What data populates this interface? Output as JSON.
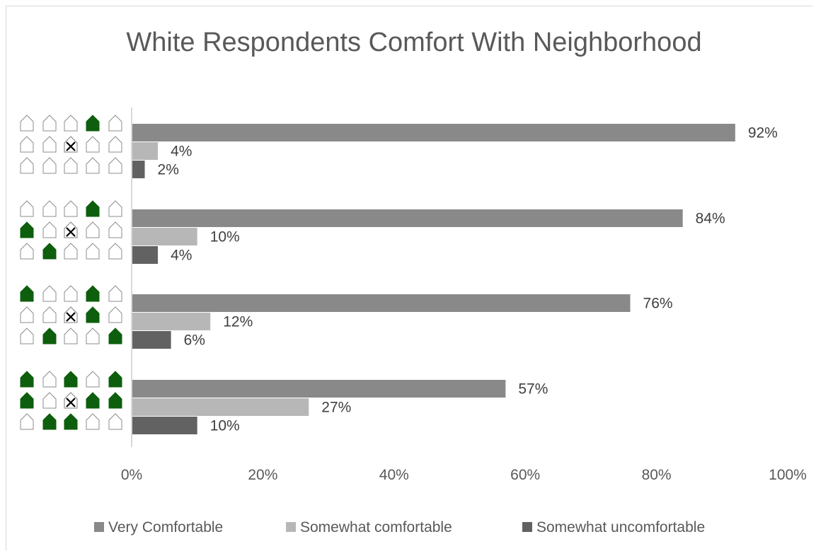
{
  "chart_data": {
    "type": "bar",
    "orientation": "horizontal",
    "title": "White Respondents Comfort With Neighborhood",
    "xlabel": "",
    "ylabel": "",
    "xlim": [
      0,
      100
    ],
    "x_ticks": [
      "0%",
      "20%",
      "40%",
      "60%",
      "80%",
      "100%"
    ],
    "grid": false,
    "legend_position": "bottom",
    "categories": [
      {
        "pictogram": [
          [
            0,
            0,
            0,
            1,
            0
          ],
          [
            0,
            0,
            2,
            0,
            0
          ],
          [
            0,
            0,
            0,
            0,
            0
          ]
        ]
      },
      {
        "pictogram": [
          [
            0,
            0,
            0,
            1,
            0
          ],
          [
            1,
            0,
            2,
            0,
            0
          ],
          [
            0,
            1,
            0,
            0,
            0
          ]
        ]
      },
      {
        "pictogram": [
          [
            1,
            0,
            0,
            1,
            0
          ],
          [
            0,
            0,
            2,
            1,
            0
          ],
          [
            0,
            1,
            0,
            0,
            1
          ]
        ]
      },
      {
        "pictogram": [
          [
            1,
            0,
            1,
            0,
            1
          ],
          [
            1,
            0,
            2,
            1,
            1
          ],
          [
            0,
            1,
            1,
            0,
            0
          ]
        ]
      }
    ],
    "pictogram_legend": {
      "0": "empty-house",
      "1": "green-house",
      "2": "x-house"
    },
    "series": [
      {
        "name": "Very Comfortable",
        "color": "#898989",
        "values": [
          92,
          84,
          76,
          57
        ],
        "labels": [
          "92%",
          "84%",
          "76%",
          "57%"
        ]
      },
      {
        "name": "Somewhat comfortable",
        "color": "#b7b7b7",
        "values": [
          4,
          10,
          12,
          27
        ],
        "labels": [
          "4%",
          "10%",
          "12%",
          "27%"
        ]
      },
      {
        "name": "Somewhat uncomfortable",
        "color": "#626262",
        "values": [
          2,
          4,
          6,
          10
        ],
        "labels": [
          "2%",
          "4%",
          "6%",
          "10%"
        ]
      }
    ]
  }
}
